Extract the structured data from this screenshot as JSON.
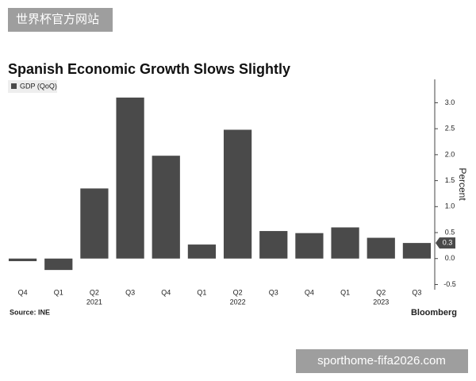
{
  "chart_data": {
    "type": "bar",
    "title": "Spanish Economic Growth Slows Slightly",
    "series": [
      {
        "name": "GDP (QoQ)",
        "color": "#4a4a4a",
        "values": [
          -0.05,
          -0.22,
          1.35,
          3.1,
          1.98,
          0.27,
          2.48,
          0.53,
          0.49,
          0.6,
          0.4,
          0.3
        ]
      }
    ],
    "categories": [
      "Q4",
      "Q1",
      "Q2",
      "Q3",
      "Q4",
      "Q1",
      "Q2",
      "Q3",
      "Q4",
      "Q1",
      "Q2",
      "Q3"
    ],
    "year_labels": [
      null,
      null,
      "2021",
      null,
      null,
      null,
      "2022",
      null,
      null,
      null,
      "2023",
      null
    ],
    "ylabel": "Percent",
    "ylim": [
      -0.6,
      3.45
    ],
    "yticks": [
      -0.5,
      {
        "value": 0,
        "label": "0.0"
      },
      0.5,
      {
        "value": 1,
        "label": "1.0"
      },
      1.5,
      {
        "value": 2,
        "label": "2.0"
      },
      2.5,
      {
        "value": 3,
        "label": "3.0"
      }
    ],
    "label_last": true,
    "source": "Source: INE",
    "brand": "Bloomberg"
  },
  "watermark": {
    "top_left": "世界杯官方网站",
    "bottom_right": "sporthome-fifa2026.com"
  }
}
